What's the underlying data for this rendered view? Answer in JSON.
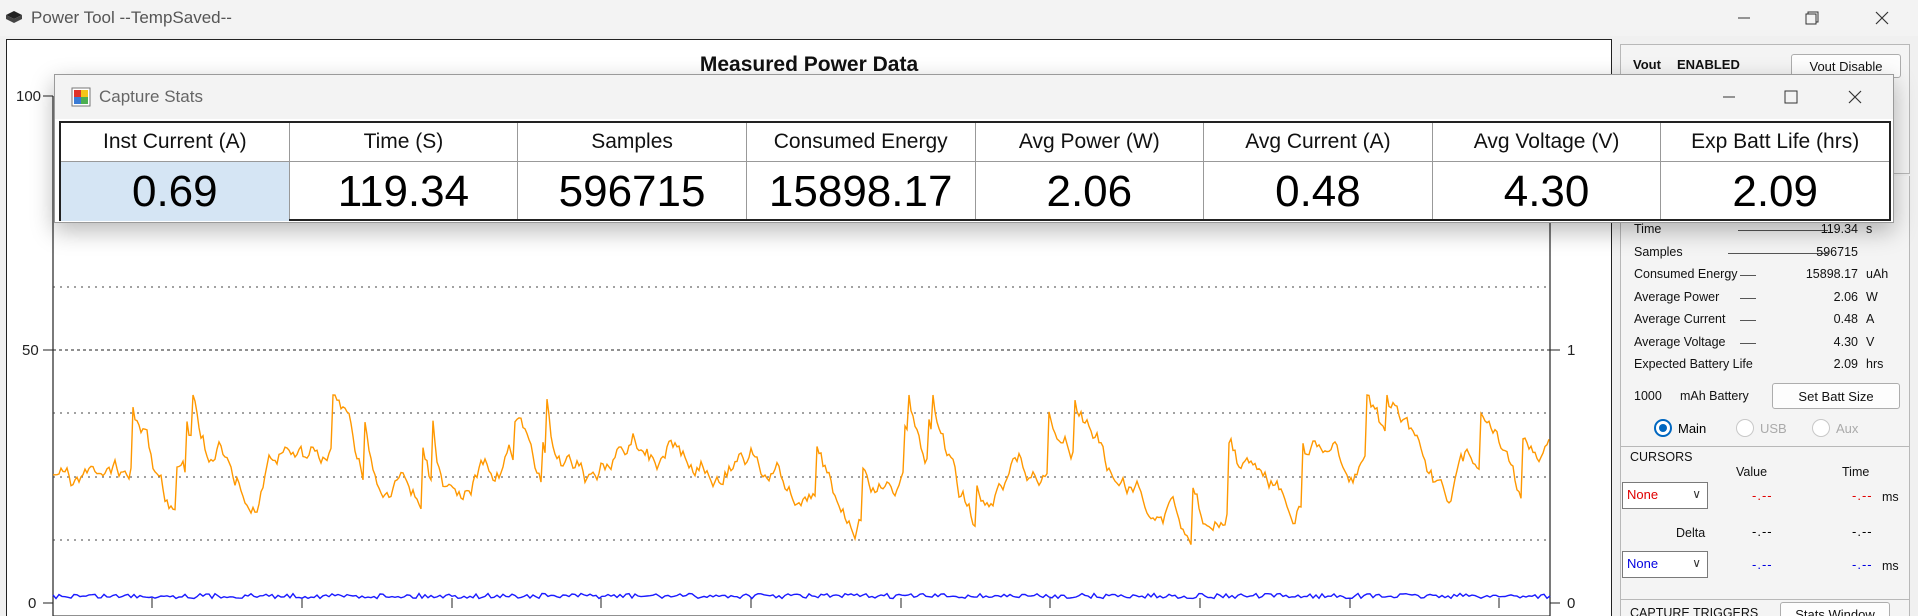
{
  "window": {
    "title": "Power Tool --TempSaved--"
  },
  "plot": {
    "title": "Measured Power Data",
    "left_axis_labels": [
      "100",
      "50",
      "0"
    ],
    "right_axis_labels": [
      "1",
      "0"
    ],
    "series_colors": {
      "current": "#ff9800",
      "voltage": "#1a1aff"
    }
  },
  "dialog": {
    "title": "Capture Stats",
    "columns": [
      {
        "header": "Inst Current (A)",
        "value": "0.69"
      },
      {
        "header": "Time (S)",
        "value": "119.34"
      },
      {
        "header": "Samples",
        "value": "596715"
      },
      {
        "header": "Consumed Energy",
        "value": "15898.17"
      },
      {
        "header": "Avg Power (W)",
        "value": "2.06"
      },
      {
        "header": "Avg Current (A)",
        "value": "0.48"
      },
      {
        "header": "Avg Voltage (V)",
        "value": "4.30"
      },
      {
        "header": "Exp Batt Life (hrs)",
        "value": "2.09"
      }
    ]
  },
  "right_panel": {
    "vout_label": "Vout",
    "vout_status": "ENABLED",
    "vout_button": "Vout Disable",
    "stats": [
      {
        "label": "Time",
        "value": "119.34",
        "unit": "s"
      },
      {
        "label": "Samples",
        "value": "596715",
        "unit": ""
      },
      {
        "label": "Consumed Energy",
        "value": "15898.17",
        "unit": "uAh"
      },
      {
        "label": "Average Power",
        "value": "2.06",
        "unit": "W"
      },
      {
        "label": "Average Current",
        "value": "0.48",
        "unit": "A"
      },
      {
        "label": "Average Voltage",
        "value": "4.30",
        "unit": "V"
      },
      {
        "label": "Expected Battery Life",
        "value": "2.09",
        "unit": "hrs"
      }
    ],
    "battery_value": "1000",
    "battery_label": "mAh Battery",
    "set_batt_button": "Set Batt Size",
    "radios": [
      {
        "label": "Main",
        "selected": true,
        "enabled": true
      },
      {
        "label": "USB",
        "selected": false,
        "enabled": false
      },
      {
        "label": "Aux",
        "selected": false,
        "enabled": false
      }
    ],
    "cursors": {
      "title": "CURSORS",
      "value_header": "Value",
      "time_header": "Time",
      "cursor1": {
        "selection": "None",
        "value": "-.--",
        "time": "-.--",
        "unit": "ms",
        "color": "#e00000"
      },
      "delta_label": "Delta",
      "delta_value": "-.--",
      "delta_time": "-.--",
      "cursor2": {
        "selection": "None",
        "value": "-.--",
        "time": "-.--",
        "unit": "ms",
        "color": "#0000e0"
      }
    },
    "capture_triggers": {
      "title": "CAPTURE TRIGGERS",
      "stats_window_button": "Stats Window"
    }
  }
}
